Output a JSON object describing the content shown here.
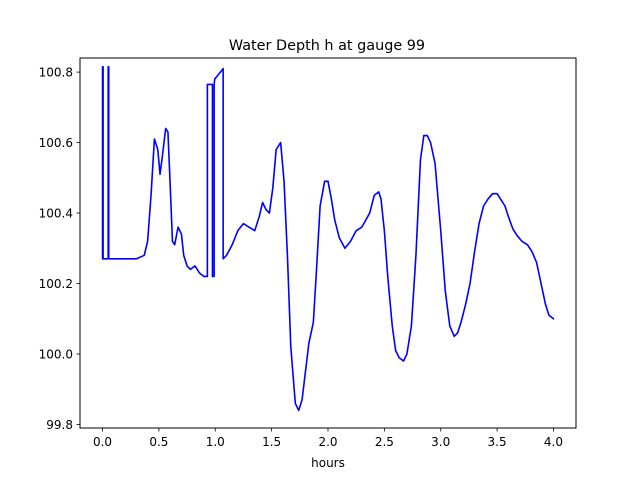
{
  "chart_data": {
    "type": "line",
    "title": "Water Depth h at gauge 99",
    "xlabel": "hours",
    "ylabel": "",
    "xlim": [
      -0.2,
      4.2
    ],
    "ylim": [
      99.79,
      100.84
    ],
    "x_ticks": [
      0.0,
      0.5,
      1.0,
      1.5,
      2.0,
      2.5,
      3.0,
      3.5,
      4.0
    ],
    "x_tick_labels": [
      "0.0",
      "0.5",
      "1.0",
      "1.5",
      "2.0",
      "2.5",
      "3.0",
      "3.5",
      "4.0"
    ],
    "y_ticks": [
      99.8,
      100.0,
      100.2,
      100.4,
      100.6,
      100.8
    ],
    "y_tick_labels": [
      "99.8",
      "100.0",
      "100.2",
      "100.4",
      "100.6",
      "100.8"
    ],
    "grid": false,
    "legend": false,
    "series": [
      {
        "color": "#0000ff",
        "x": [
          0.0,
          0.0,
          0.005,
          0.005,
          0.05,
          0.05,
          0.055,
          0.055,
          0.08,
          0.2,
          0.3,
          0.37,
          0.4,
          0.43,
          0.46,
          0.49,
          0.51,
          0.53,
          0.56,
          0.58,
          0.6,
          0.62,
          0.64,
          0.67,
          0.7,
          0.72,
          0.75,
          0.78,
          0.82,
          0.86,
          0.9,
          0.93,
          0.93,
          0.975,
          0.975,
          0.99,
          0.99,
          0.995,
          1.07,
          1.07,
          1.1,
          1.15,
          1.2,
          1.25,
          1.3,
          1.35,
          1.39,
          1.42,
          1.45,
          1.48,
          1.51,
          1.54,
          1.58,
          1.61,
          1.64,
          1.67,
          1.71,
          1.74,
          1.77,
          1.8,
          1.83,
          1.87,
          1.9,
          1.93,
          1.97,
          2.0,
          2.03,
          2.06,
          2.1,
          2.15,
          2.2,
          2.25,
          2.3,
          2.37,
          2.41,
          2.45,
          2.47,
          2.5,
          2.53,
          2.57,
          2.6,
          2.63,
          2.67,
          2.7,
          2.74,
          2.78,
          2.82,
          2.85,
          2.88,
          2.91,
          2.95,
          3.0,
          3.04,
          3.08,
          3.12,
          3.15,
          3.18,
          3.22,
          3.26,
          3.3,
          3.34,
          3.38,
          3.42,
          3.46,
          3.5,
          3.53,
          3.57,
          3.6,
          3.64,
          3.68,
          3.72,
          3.77,
          3.81,
          3.85,
          3.89,
          3.93,
          3.96,
          4.0
        ],
        "y": [
          100.27,
          100.815,
          100.815,
          100.27,
          100.27,
          100.815,
          100.815,
          100.27,
          100.27,
          100.27,
          100.27,
          100.28,
          100.32,
          100.45,
          100.61,
          100.58,
          100.51,
          100.56,
          100.64,
          100.63,
          100.48,
          100.32,
          100.31,
          100.36,
          100.34,
          100.28,
          100.25,
          100.24,
          100.25,
          100.23,
          100.22,
          100.22,
          100.765,
          100.765,
          100.22,
          100.22,
          100.765,
          100.78,
          100.81,
          100.27,
          100.28,
          100.31,
          100.35,
          100.37,
          100.36,
          100.35,
          100.39,
          100.43,
          100.41,
          100.4,
          100.47,
          100.58,
          100.6,
          100.49,
          100.28,
          100.02,
          99.86,
          99.84,
          99.87,
          99.95,
          100.03,
          100.09,
          100.25,
          100.42,
          100.49,
          100.49,
          100.44,
          100.38,
          100.33,
          100.3,
          100.32,
          100.35,
          100.36,
          100.4,
          100.45,
          100.46,
          100.44,
          100.35,
          100.22,
          100.08,
          100.01,
          99.99,
          99.98,
          100.0,
          100.08,
          100.28,
          100.55,
          100.62,
          100.62,
          100.6,
          100.54,
          100.35,
          100.18,
          100.08,
          100.05,
          100.06,
          100.09,
          100.14,
          100.2,
          100.29,
          100.37,
          100.42,
          100.44,
          100.455,
          100.455,
          100.44,
          100.42,
          100.39,
          100.355,
          100.335,
          100.32,
          100.31,
          100.29,
          100.26,
          100.2,
          100.14,
          100.11,
          100.1
        ]
      }
    ]
  }
}
